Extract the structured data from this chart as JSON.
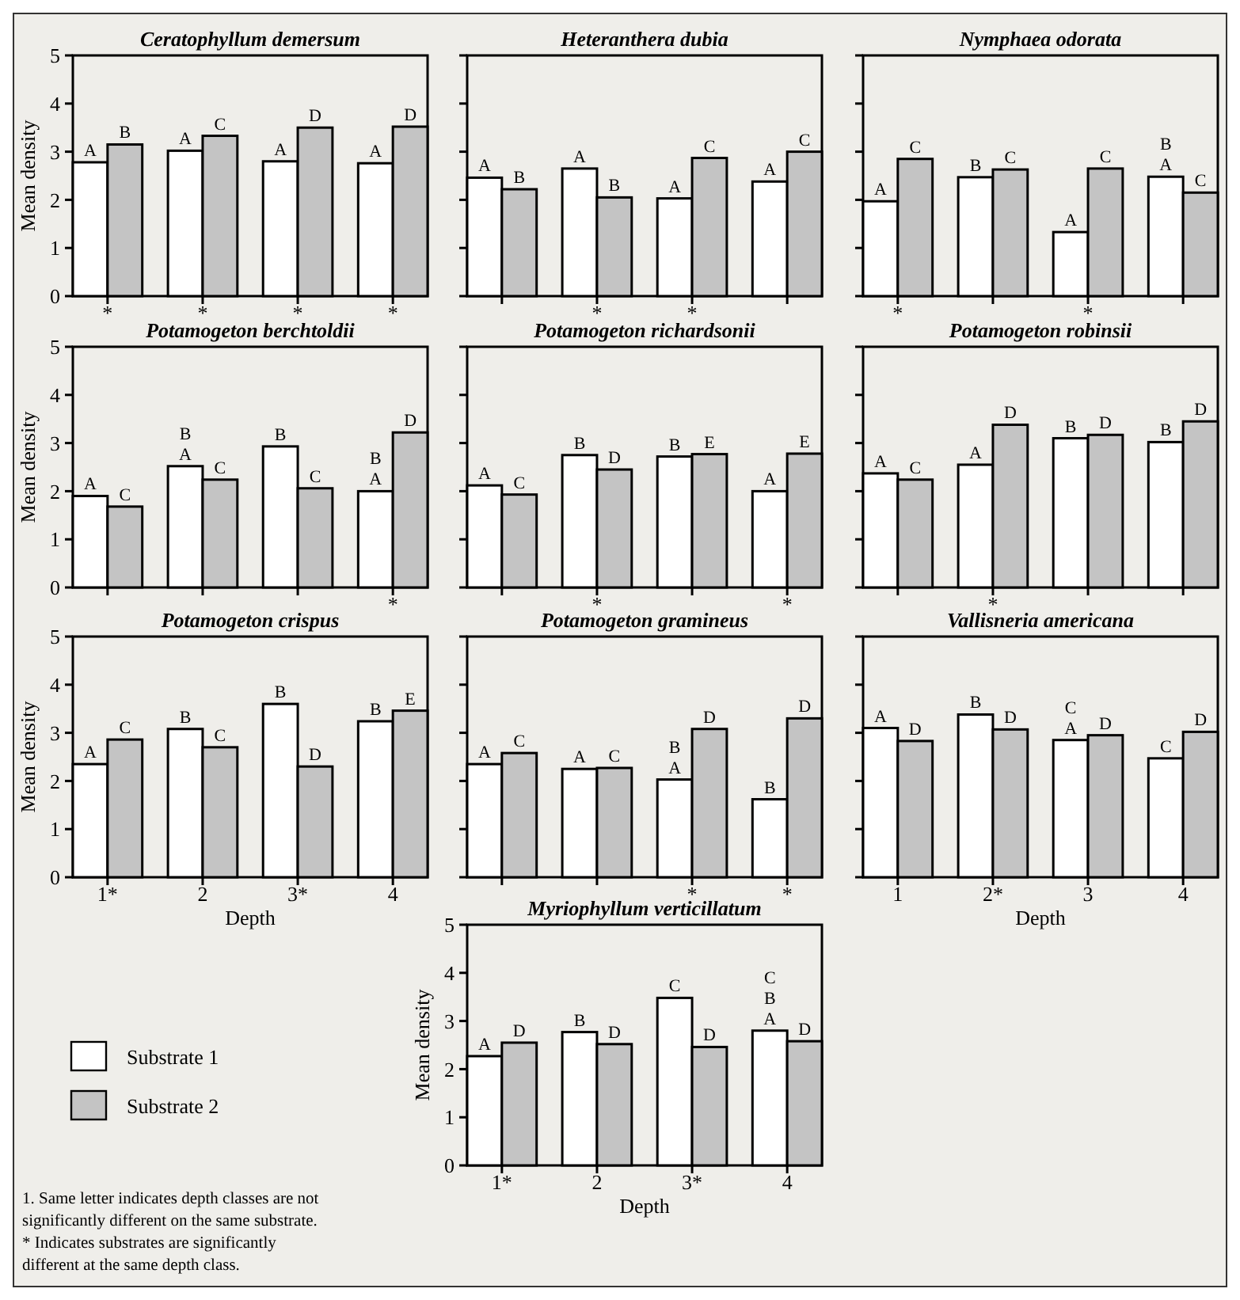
{
  "chart_data": [
    {
      "type": "bar",
      "title": "Ceratophyllum demersum",
      "ylabel": "Mean density",
      "categories": [
        "*",
        "*",
        "*",
        "*"
      ],
      "ylim": [
        0,
        5
      ],
      "yticks": [
        0,
        1,
        2,
        3,
        4,
        5
      ],
      "series": [
        {
          "color": "#ffffff",
          "values": [
            2.78,
            3.02,
            2.8,
            2.76
          ],
          "value_labels": [
            "A",
            "A",
            "A",
            "A"
          ]
        },
        {
          "color": "#c4c4c4",
          "values": [
            3.15,
            3.33,
            3.5,
            3.52
          ],
          "value_labels": [
            "B",
            "C",
            "D",
            "D"
          ]
        }
      ]
    },
    {
      "type": "bar",
      "title": "Heteranthera dubia",
      "categories": [
        null,
        "*",
        "*",
        null
      ],
      "ylim": [
        0,
        5
      ],
      "yticks": [
        0,
        1,
        2,
        3,
        4,
        5
      ],
      "tick_labels": "x",
      "series": [
        {
          "color": "#ffffff",
          "values": [
            2.46,
            2.65,
            2.03,
            2.38
          ],
          "value_labels": [
            "A",
            "A",
            "A",
            "A"
          ]
        },
        {
          "color": "#c4c4c4",
          "values": [
            2.22,
            2.05,
            2.87,
            3.0
          ],
          "value_labels": [
            "B",
            "B",
            "C",
            "C"
          ]
        }
      ]
    },
    {
      "type": "bar",
      "title": "Nymphaea odorata",
      "categories": [
        "*",
        null,
        "*",
        null
      ],
      "ylim": [
        0,
        5
      ],
      "yticks": [
        0,
        1,
        2,
        3,
        4,
        5
      ],
      "tick_labels": "x",
      "series": [
        {
          "color": "#ffffff",
          "values": [
            1.97,
            2.47,
            1.33,
            2.48
          ],
          "value_labels": [
            "A",
            "B",
            "A",
            "B\nA"
          ]
        },
        {
          "color": "#c4c4c4",
          "values": [
            2.85,
            2.63,
            2.65,
            2.15
          ],
          "value_labels": [
            "C",
            "C",
            "C",
            "C"
          ]
        }
      ]
    },
    {
      "type": "bar",
      "title": "Potamogeton berchtoldii",
      "ylabel": "Mean density",
      "categories": [
        null,
        null,
        null,
        "*"
      ],
      "ylim": [
        0,
        5
      ],
      "yticks": [
        0,
        1,
        2,
        3,
        4,
        5
      ],
      "series": [
        {
          "color": "#ffffff",
          "values": [
            1.9,
            2.52,
            2.93,
            2.0
          ],
          "value_labels": [
            "A",
            "B\nA",
            "B",
            "B\nA"
          ]
        },
        {
          "color": "#c4c4c4",
          "values": [
            1.68,
            2.24,
            2.06,
            3.22
          ],
          "value_labels": [
            "C",
            "C",
            "C",
            "D"
          ]
        }
      ]
    },
    {
      "type": "bar",
      "title": "Potamogeton richardsonii",
      "categories": [
        null,
        "*",
        null,
        "*"
      ],
      "ylim": [
        0,
        5
      ],
      "yticks": [
        0,
        1,
        2,
        3,
        4,
        5
      ],
      "tick_labels": "x",
      "series": [
        {
          "color": "#ffffff",
          "values": [
            2.12,
            2.75,
            2.72,
            2.0
          ],
          "value_labels": [
            "A",
            "B",
            "B",
            "A"
          ]
        },
        {
          "color": "#c4c4c4",
          "values": [
            1.93,
            2.45,
            2.77,
            2.78
          ],
          "value_labels": [
            "C",
            "D",
            "E",
            "E"
          ]
        }
      ]
    },
    {
      "type": "bar",
      "title": "Potamogeton robinsii",
      "categories": [
        null,
        "*",
        null,
        null
      ],
      "ylim": [
        0,
        5
      ],
      "yticks": [
        0,
        1,
        2,
        3,
        4,
        5
      ],
      "tick_labels": "x",
      "series": [
        {
          "color": "#ffffff",
          "values": [
            2.37,
            2.55,
            3.1,
            3.02
          ],
          "value_labels": [
            "A",
            "A",
            "B",
            "B"
          ]
        },
        {
          "color": "#c4c4c4",
          "values": [
            2.24,
            3.38,
            3.17,
            3.45
          ],
          "value_labels": [
            "C",
            "D",
            "D",
            "D"
          ]
        }
      ]
    },
    {
      "type": "bar",
      "title": "Potamogeton crispus",
      "ylabel": "Mean density",
      "xlabel": "Depth",
      "categories": [
        "1*",
        "2",
        "3*",
        "4"
      ],
      "ylim": [
        0,
        5
      ],
      "yticks": [
        0,
        1,
        2,
        3,
        4,
        5
      ],
      "series": [
        {
          "color": "#ffffff",
          "values": [
            2.35,
            3.08,
            3.6,
            3.24
          ],
          "value_labels": [
            "A",
            "B",
            "B",
            "B"
          ]
        },
        {
          "color": "#c4c4c4",
          "values": [
            2.86,
            2.7,
            2.3,
            3.46
          ],
          "value_labels": [
            "C",
            "C",
            "D",
            "E"
          ]
        }
      ]
    },
    {
      "type": "bar",
      "title": "Potamogeton gramineus",
      "categories": [
        null,
        null,
        "*",
        "*"
      ],
      "ylim": [
        0,
        5
      ],
      "yticks": [
        0,
        1,
        2,
        3,
        4,
        5
      ],
      "tick_labels": "x",
      "series": [
        {
          "color": "#ffffff",
          "values": [
            2.35,
            2.25,
            2.03,
            1.62
          ],
          "value_labels": [
            "A",
            "A",
            "B\nA",
            "B"
          ]
        },
        {
          "color": "#c4c4c4",
          "values": [
            2.58,
            2.27,
            3.08,
            3.3
          ],
          "value_labels": [
            "C",
            "C",
            "D",
            "D"
          ]
        }
      ]
    },
    {
      "type": "bar",
      "title": "Vallisneria americana",
      "xlabel": "Depth",
      "categories": [
        "1",
        "2*",
        "3",
        "4"
      ],
      "ylim": [
        0,
        5
      ],
      "yticks": [
        0,
        1,
        2,
        3,
        4,
        5
      ],
      "tick_labels": "x",
      "series": [
        {
          "color": "#ffffff",
          "values": [
            3.1,
            3.38,
            2.85,
            2.47
          ],
          "value_labels": [
            "A",
            "B",
            "C\nA",
            "C"
          ]
        },
        {
          "color": "#c4c4c4",
          "values": [
            2.83,
            3.07,
            2.95,
            3.02
          ],
          "value_labels": [
            "D",
            "D",
            "D",
            "D"
          ]
        }
      ]
    },
    {
      "type": "bar",
      "title": "Myriophyllum verticillatum",
      "ylabel": "Mean density",
      "xlabel": "Depth",
      "categories": [
        "1*",
        "2",
        "3*",
        "4"
      ],
      "ylim": [
        0,
        5
      ],
      "yticks": [
        0,
        1,
        2,
        3,
        4,
        5
      ],
      "legend": "left",
      "annotations": [
        "1.  Same letter indicates depth classes are not significantly different on the same substrate.",
        "*  Indicates substrates are significantly different at the same depth class."
      ],
      "series": [
        {
          "name": "Substrate 1",
          "color": "#ffffff",
          "values": [
            2.27,
            2.77,
            3.48,
            2.8
          ],
          "value_labels": [
            "A",
            "B",
            "C",
            "C\nB\nA"
          ]
        },
        {
          "name": "Substrate 2",
          "color": "#c4c4c4",
          "values": [
            2.55,
            2.52,
            2.46,
            2.58
          ],
          "value_labels": [
            "D",
            "D",
            "D",
            "D"
          ]
        }
      ]
    }
  ]
}
